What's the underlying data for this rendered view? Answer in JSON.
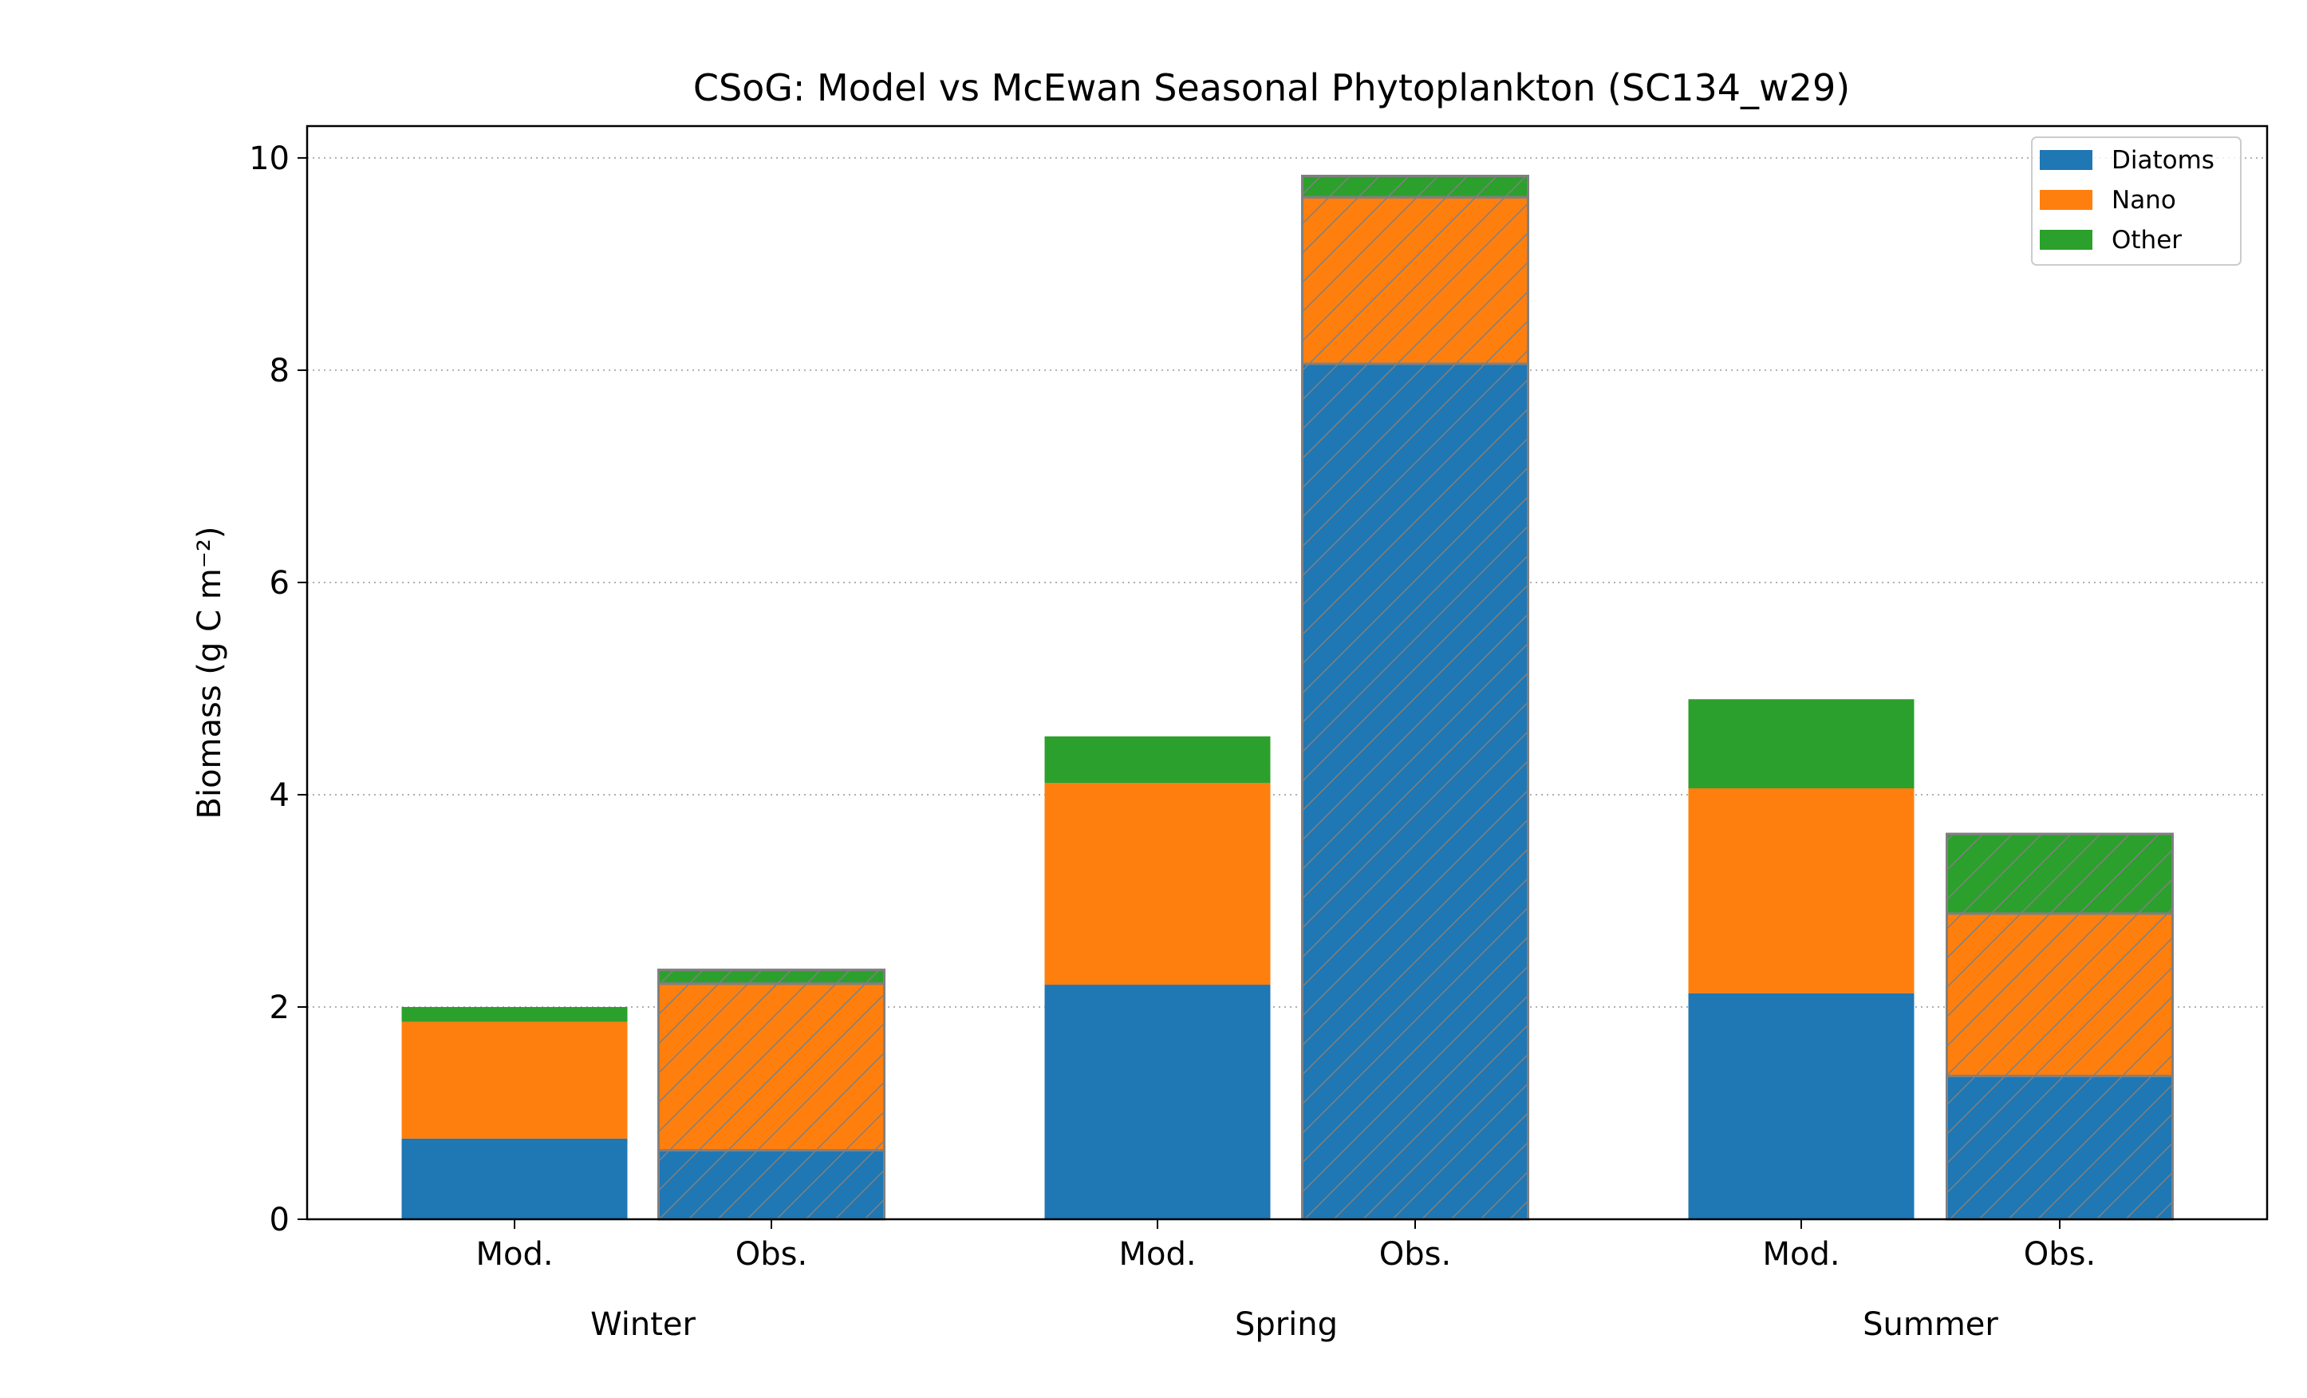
{
  "chart_data": {
    "type": "bar",
    "stacked": true,
    "title": "CSoG: Model vs McEwan Seasonal Phytoplankton (SC134_w29)",
    "xlabel": "",
    "ylabel": "Biomass (g C m⁻²)",
    "ylim": [
      0,
      10.3
    ],
    "yticks": [
      0,
      2,
      4,
      6,
      8,
      10
    ],
    "grid": "horizontal dotted",
    "legend_position": "top-right",
    "groups": [
      "Winter",
      "Spring",
      "Summer"
    ],
    "bar_labels": [
      "Mod.",
      "Obs."
    ],
    "categories": [
      "Winter Mod.",
      "Winter Obs.",
      "Spring Mod.",
      "Spring Obs.",
      "Summer Mod.",
      "Summer Obs."
    ],
    "hatched": [
      false,
      true,
      false,
      true,
      false,
      true
    ],
    "series": [
      {
        "name": "Diatoms",
        "color": "#1f77b4",
        "values": [
          0.76,
          0.65,
          2.21,
          8.06,
          2.13,
          1.35
        ]
      },
      {
        "name": "Nano",
        "color": "#ff7f0e",
        "values": [
          1.1,
          1.57,
          1.9,
          1.57,
          1.93,
          1.53
        ]
      },
      {
        "name": "Other",
        "color": "#2ca02c",
        "values": [
          0.14,
          0.13,
          0.44,
          0.2,
          0.84,
          0.75
        ]
      }
    ]
  }
}
